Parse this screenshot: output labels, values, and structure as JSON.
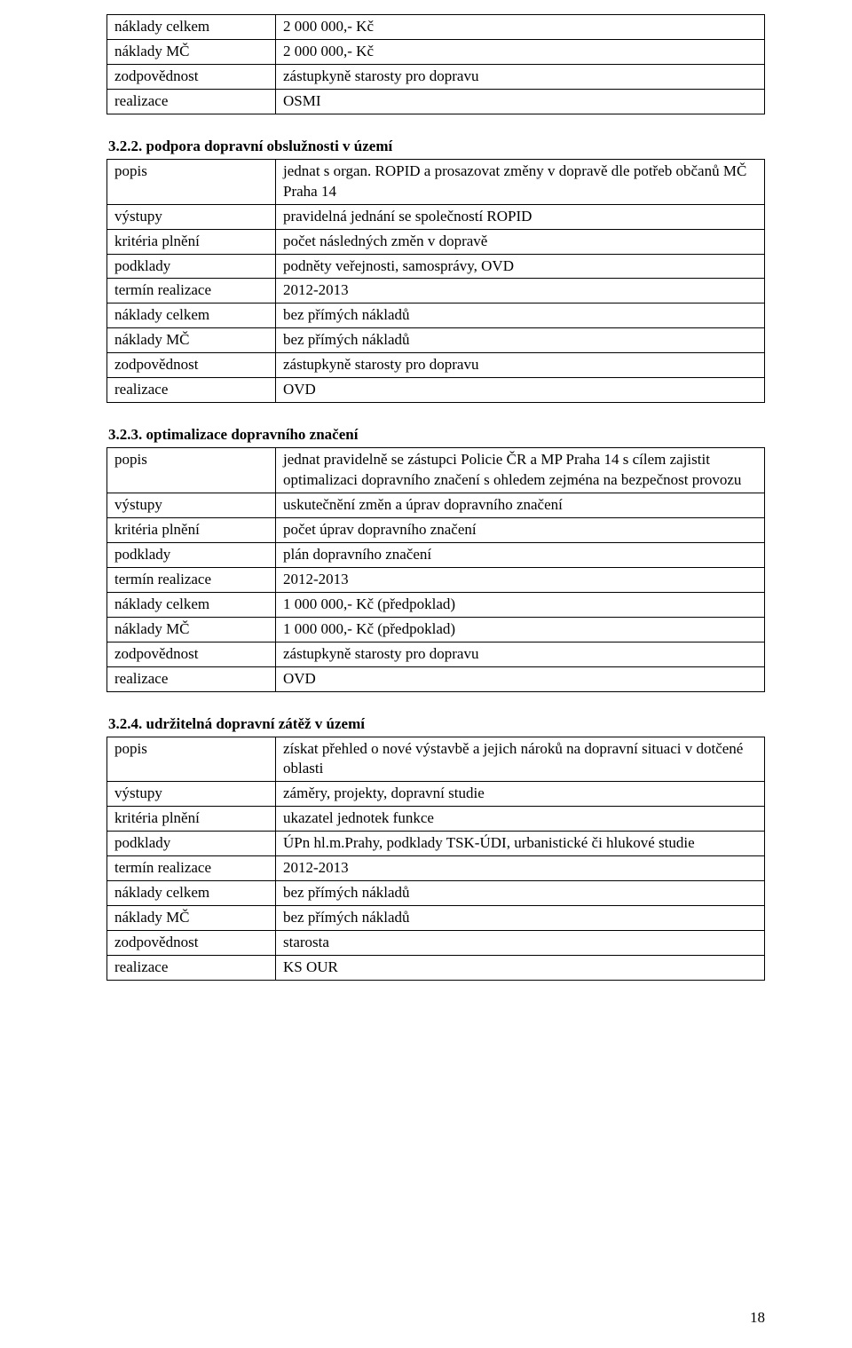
{
  "tables": [
    {
      "heading": null,
      "rows": [
        {
          "label": "náklady celkem",
          "value": "2 000 000,- Kč"
        },
        {
          "label": "náklady MČ",
          "value": "2 000 000,- Kč"
        },
        {
          "label": "zodpovědnost",
          "value": "zástupkyně starosty pro dopravu"
        },
        {
          "label": "realizace",
          "value": "OSMI"
        }
      ]
    },
    {
      "heading": "3.2.2. podpora dopravní obslužnosti v území",
      "rows": [
        {
          "label": "popis",
          "value": "jednat s organ. ROPID a prosazovat změny v dopravě dle potřeb občanů MČ Praha 14"
        },
        {
          "label": "výstupy",
          "value": "pravidelná jednání se společností ROPID"
        },
        {
          "label": "kritéria plnění",
          "value": "počet následných změn v dopravě"
        },
        {
          "label": "podklady",
          "value": "podněty veřejnosti, samosprávy, OVD"
        },
        {
          "label": "termín realizace",
          "value": "2012-2013"
        },
        {
          "label": "náklady celkem",
          "value": "bez přímých nákladů"
        },
        {
          "label": "náklady MČ",
          "value": "bez přímých nákladů"
        },
        {
          "label": "zodpovědnost",
          "value": "zástupkyně starosty pro dopravu"
        },
        {
          "label": "realizace",
          "value": "OVD"
        }
      ]
    },
    {
      "heading": "3.2.3. optimalizace dopravního značení",
      "rows": [
        {
          "label": "popis",
          "value": "jednat pravidelně se zástupci Policie ČR a MP Praha 14 s cílem zajistit optimalizaci dopravního značení s ohledem zejména na bezpečnost provozu"
        },
        {
          "label": "výstupy",
          "value": "uskutečnění změn a úprav dopravního značení"
        },
        {
          "label": "kritéria plnění",
          "value": "počet úprav dopravního značení"
        },
        {
          "label": "podklady",
          "value": "plán dopravního značení"
        },
        {
          "label": "termín realizace",
          "value": "2012-2013"
        },
        {
          "label": "náklady celkem",
          "value": "1 000 000,- Kč (předpoklad)"
        },
        {
          "label": "náklady MČ",
          "value": "1 000 000,- Kč (předpoklad)"
        },
        {
          "label": "zodpovědnost",
          "value": "zástupkyně starosty pro dopravu"
        },
        {
          "label": "realizace",
          "value": "OVD"
        }
      ]
    },
    {
      "heading": "3.2.4. udržitelná dopravní zátěž v území",
      "rows": [
        {
          "label": "popis",
          "value": "získat přehled o nové výstavbě a jejich nároků na dopravní situaci v dotčené oblasti"
        },
        {
          "label": "výstupy",
          "value": "záměry, projekty, dopravní studie"
        },
        {
          "label": "kritéria plnění",
          "value": "ukazatel jednotek funkce"
        },
        {
          "label": "podklady",
          "value": "ÚPn hl.m.Prahy, podklady TSK-ÚDI, urbanistické či hlukové studie"
        },
        {
          "label": "termín realizace",
          "value": "2012-2013"
        },
        {
          "label": "náklady celkem",
          "value": "bez přímých nákladů"
        },
        {
          "label": "náklady MČ",
          "value": "bez přímých nákladů"
        },
        {
          "label": "zodpovědnost",
          "value": "starosta"
        },
        {
          "label": "realizace",
          "value": "KS OUR"
        }
      ]
    }
  ],
  "page_number": "18"
}
